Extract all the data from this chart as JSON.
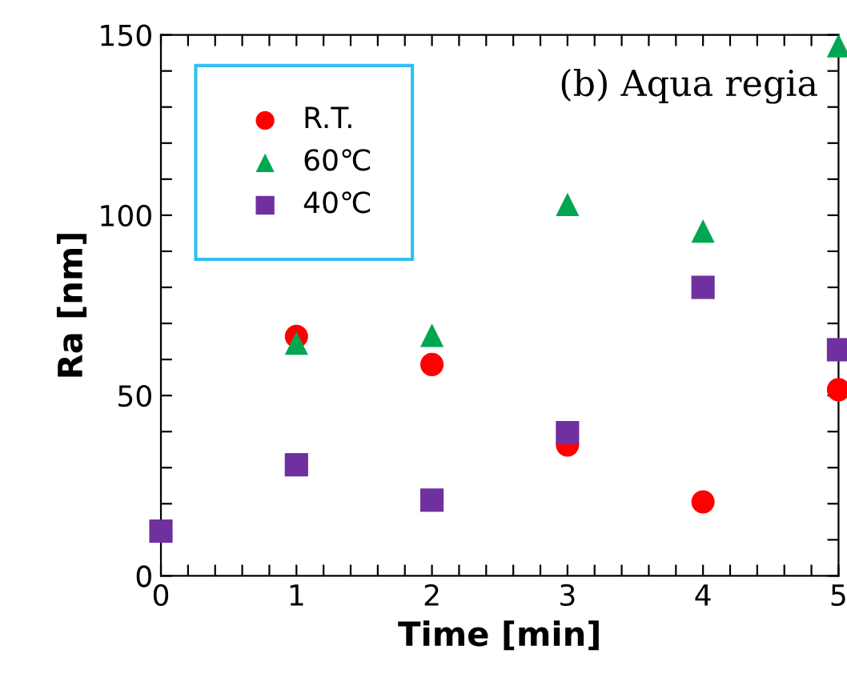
{
  "chart_data": {
    "type": "scatter",
    "xlabel": "Time [min]",
    "ylabel": "Ra [nm]",
    "annotations": [
      "(b) Aqua regia"
    ],
    "series": [
      {
        "name": "R.T.",
        "color": "#ff0000",
        "marker": "circle",
        "x": [
          1,
          2,
          3,
          4,
          5
        ],
        "values": [
          66.4,
          58.6,
          36.3,
          20.5,
          51.6
        ]
      },
      {
        "name": "60℃",
        "color": "#00a651",
        "marker": "triangle",
        "x": [
          1,
          2,
          3,
          4,
          5
        ],
        "values": [
          64.5,
          66.7,
          103,
          95.6,
          147
        ]
      },
      {
        "name": "40℃",
        "color": "#7030a0",
        "marker": "square",
        "x": [
          0,
          1,
          2,
          3,
          4,
          5
        ],
        "values": [
          12.4,
          30.8,
          21,
          39.7,
          80,
          62.7
        ]
      }
    ],
    "xlim": [
      0,
      5
    ],
    "ylim": [
      0,
      150
    ],
    "xticks": [
      0,
      {
        "value": 0.2,
        "label": null
      },
      {
        "value": 0.4,
        "label": null
      },
      {
        "value": 0.6,
        "label": null
      },
      {
        "value": 0.8,
        "label": null
      },
      1,
      {
        "value": 1.2,
        "label": null
      },
      {
        "value": 1.4,
        "label": null
      },
      {
        "value": 1.6,
        "label": null
      },
      {
        "value": 1.8,
        "label": null
      },
      2,
      {
        "value": 2.2,
        "label": null
      },
      {
        "value": 2.4,
        "label": null
      },
      {
        "value": 2.6,
        "label": null
      },
      {
        "value": 2.8,
        "label": null
      },
      3,
      {
        "value": 3.2,
        "label": null
      },
      {
        "value": 3.4,
        "label": null
      },
      {
        "value": 3.6,
        "label": null
      },
      {
        "value": 3.8,
        "label": null
      },
      4,
      {
        "value": 4.2,
        "label": null
      },
      {
        "value": 4.4,
        "label": null
      },
      {
        "value": 4.6,
        "label": null
      },
      {
        "value": 4.8,
        "label": null
      },
      5
    ],
    "yticks": [
      0,
      {
        "value": 10,
        "label": null
      },
      {
        "value": 20,
        "label": null
      },
      {
        "value": 30,
        "label": null
      },
      {
        "value": 40,
        "label": null
      },
      50,
      {
        "value": 60,
        "label": null
      },
      {
        "value": 70,
        "label": null
      },
      {
        "value": 80,
        "label": null
      },
      {
        "value": 90,
        "label": null
      },
      100,
      {
        "value": 110,
        "label": null
      },
      {
        "value": 120,
        "label": null
      },
      {
        "value": 130,
        "label": null
      },
      {
        "value": 140,
        "label": null
      },
      150
    ],
    "grid": false,
    "legend": "top left"
  }
}
